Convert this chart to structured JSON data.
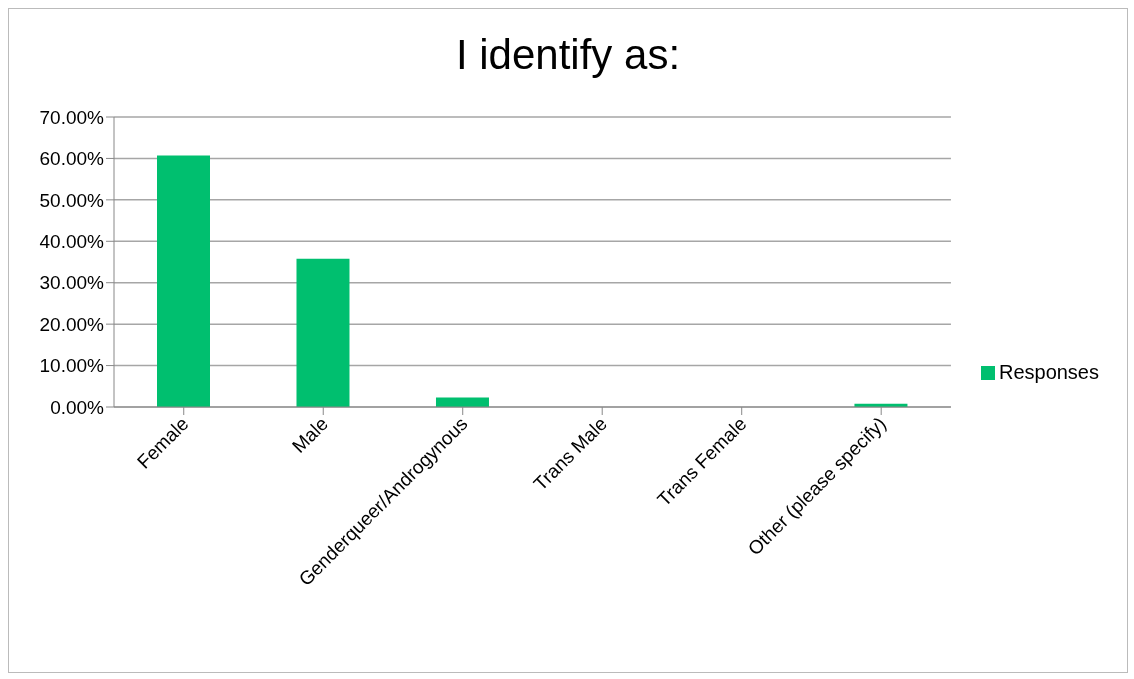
{
  "chart_data": {
    "type": "bar",
    "title": "I identify as:",
    "categories": [
      "Female",
      "Male",
      "Genderqueer/Androgynous",
      "Trans Male",
      "Trans Female",
      "Other (please specify)"
    ],
    "series": [
      {
        "name": "Responses",
        "color": "#00bf6f",
        "values": [
          60.7,
          35.8,
          2.3,
          0,
          0,
          0.8
        ]
      }
    ],
    "ylim": [
      0,
      70
    ],
    "yticks": [
      {
        "value": 0,
        "label": "0.00%"
      },
      {
        "value": 10,
        "label": "10.00%"
      },
      {
        "value": 20,
        "label": "20.00%"
      },
      {
        "value": 30,
        "label": "30.00%"
      },
      {
        "value": 40,
        "label": "40.00%"
      },
      {
        "value": 50,
        "label": "50.00%"
      },
      {
        "value": 60,
        "label": "60.00%"
      },
      {
        "value": 70,
        "label": "70.00%"
      }
    ],
    "grid": "y",
    "legend": "right"
  }
}
